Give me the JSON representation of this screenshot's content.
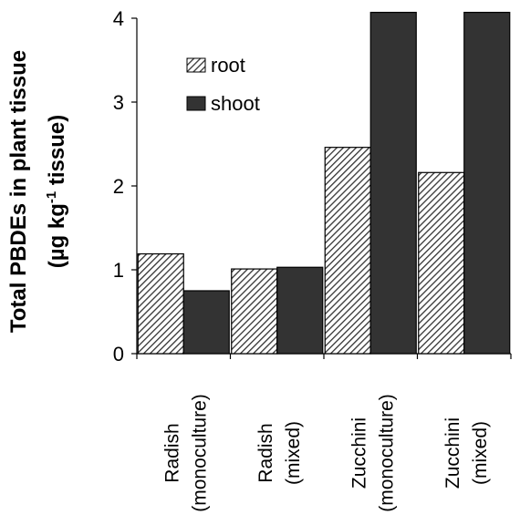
{
  "chart_data": {
    "type": "bar",
    "categories": [
      [
        "Radish",
        "(monoculture)"
      ],
      [
        "Radish",
        "(mixed)"
      ],
      [
        "Zucchini",
        "(monoculture)"
      ],
      [
        "Zucchini",
        "(mixed)"
      ]
    ],
    "series": [
      {
        "name": "root",
        "values": [
          1.19,
          1.01,
          2.46,
          2.16
        ],
        "color": "#333333",
        "pattern": "diagonal-hatch"
      },
      {
        "name": "shoot",
        "values": [
          0.75,
          1.03,
          4.07,
          4.07
        ],
        "color": "#333333",
        "pattern": "solid"
      }
    ],
    "ylabel_line1": "Total PBDEs in plant tissue",
    "ylabel_line2_pre": "(µg kg",
    "ylabel_line2_sup": "-1",
    "ylabel_line2_post": " tissue)",
    "ylim": [
      0,
      4
    ],
    "yticks": [
      "0",
      "1",
      "2",
      "3",
      "4"
    ],
    "grid": false,
    "legend_position": "top-left"
  }
}
